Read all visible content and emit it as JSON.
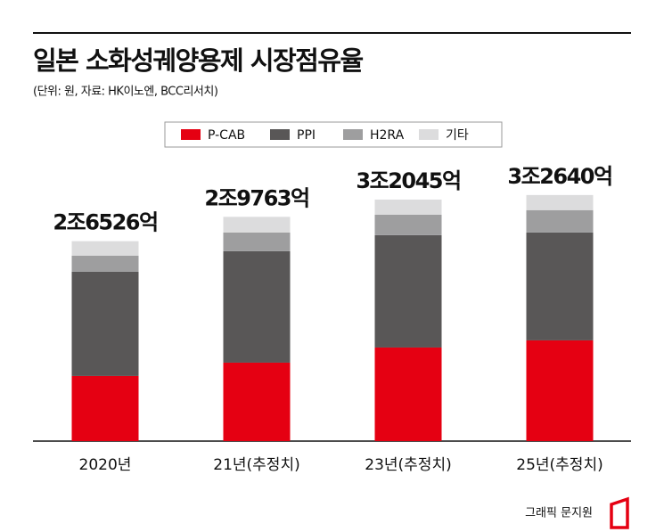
{
  "chart_data": {
    "type": "stacked-bar",
    "title": "일본 소화성궤양용제 시장점유율",
    "subtitle": "(단위: 원, 자료: HK이노엔, BCC리서치)",
    "categories": [
      "2020년",
      "21년(추정치)",
      "23년(추정치)",
      "25년(추정치)"
    ],
    "series": [
      {
        "name": "P-CAB",
        "color": "#e50012",
        "values": [
          8640,
          10410,
          12420,
          13370
        ]
      },
      {
        "name": "PPI",
        "color": "#595757",
        "values": [
          13840,
          14790,
          14910,
          14320
        ]
      },
      {
        "name": "H2RA",
        "color": "#9e9e9f",
        "values": [
          2130,
          2480,
          2720,
          2960
        ]
      },
      {
        "name": "기타",
        "color": "#dcdcdd",
        "values": [
          1916,
          2080,
          2000,
          2000
        ]
      }
    ],
    "totals": {
      "values": [
        26526,
        29763,
        32045,
        32640
      ],
      "value_labels": [
        "2조6526억",
        "2조9763억",
        "3조2045억",
        "3조2640억"
      ]
    },
    "ylim": [
      0,
      35000
    ],
    "credit": "그래픽 문지원"
  }
}
